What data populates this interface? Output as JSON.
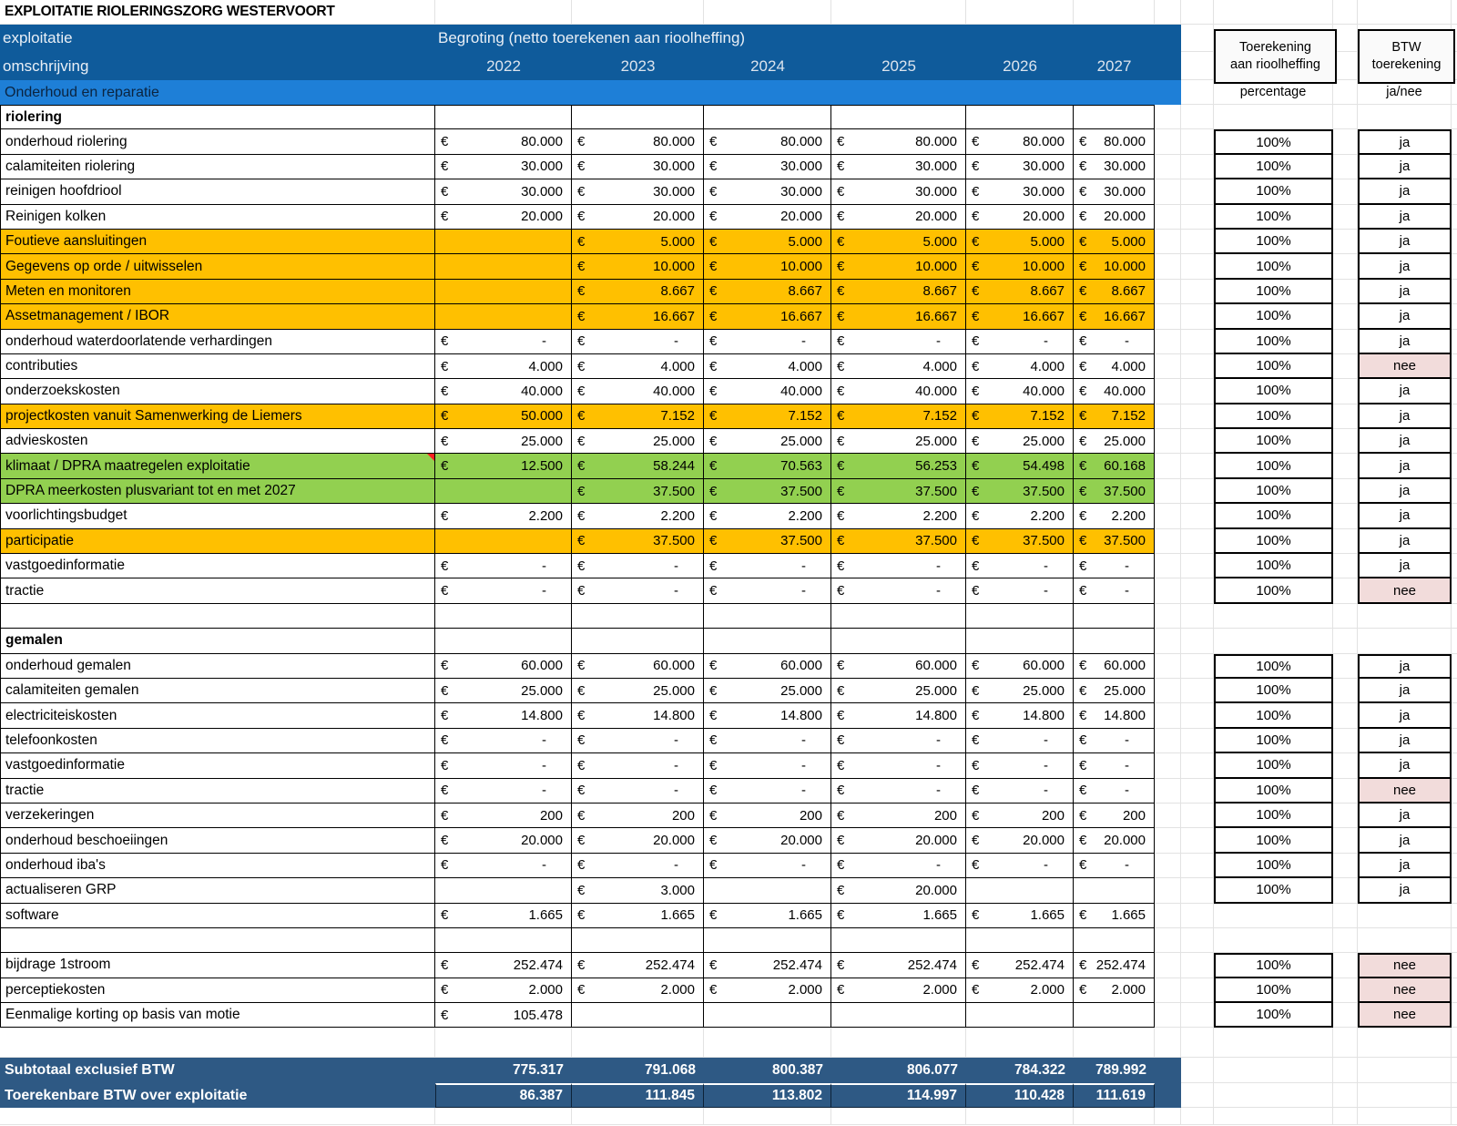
{
  "title": "EXPLOITATIE RIOLERINGSZORG WESTERVOORT",
  "header": {
    "col1_line1": "exploitatie",
    "col1_line2": "omschrijving",
    "budget_title": "Begroting (netto toerekenen aan rioolheffing)",
    "years": [
      "2022",
      "2023",
      "2024",
      "2025",
      "2026",
      "2027"
    ],
    "subheader": "Onderhoud en reparatie",
    "toerekening_line1": "Toerekening",
    "toerekening_line2": "aan rioolheffing",
    "toerekening_sub": "percentage",
    "btw_line1": "BTW",
    "btw_line2": "toerekening",
    "btw_sub": "ja/nee",
    "currency_symbol": "€"
  },
  "colors": {
    "header_blue": "#0F5B9B",
    "subheader_blue": "#1E7FD7",
    "totals_navy": "#2E5984",
    "highlight_orange": "#FFC000",
    "highlight_green": "#92D050",
    "nee_pink": "#F2DCDB",
    "comment_red": "#FF2020"
  },
  "rows": [
    {
      "t": "g",
      "h": 27
    },
    {
      "t": "h1"
    },
    {
      "t": "h2"
    },
    {
      "t": "oer"
    },
    {
      "t": "s",
      "l": "riolering",
      "ft": 1
    },
    {
      "t": "d",
      "l": "onderhoud riolering",
      "v": [
        "80.000",
        "80.000",
        "80.000",
        "80.000",
        "80.000",
        "80.000"
      ],
      "p": "100%",
      "b": "ja"
    },
    {
      "t": "d",
      "l": "calamiteiten riolering",
      "v": [
        "30.000",
        "30.000",
        "30.000",
        "30.000",
        "30.000",
        "30.000"
      ],
      "p": "100%",
      "b": "ja"
    },
    {
      "t": "d",
      "l": "reinigen hoofdriool",
      "v": [
        "30.000",
        "30.000",
        "30.000",
        "30.000",
        "30.000",
        "30.000"
      ],
      "p": "100%",
      "b": "ja"
    },
    {
      "t": "d",
      "l": "Reinigen kolken",
      "v": [
        "20.000",
        "20.000",
        "20.000",
        "20.000",
        "20.000",
        "20.000"
      ],
      "p": "100%",
      "b": "ja"
    },
    {
      "t": "d",
      "l": "Foutieve aansluitingen",
      "bg": "orange",
      "v": [
        null,
        "5.000",
        "5.000",
        "5.000",
        "5.000",
        "5.000"
      ],
      "p": "100%",
      "b": "ja"
    },
    {
      "t": "d",
      "l": "Gegevens op orde / uitwisselen",
      "bg": "orange",
      "v": [
        null,
        "10.000",
        "10.000",
        "10.000",
        "10.000",
        "10.000"
      ],
      "p": "100%",
      "b": "ja"
    },
    {
      "t": "d",
      "l": "Meten en monitoren",
      "bg": "orange",
      "v": [
        null,
        "8.667",
        "8.667",
        "8.667",
        "8.667",
        "8.667"
      ],
      "p": "100%",
      "b": "ja"
    },
    {
      "t": "d",
      "l": "Assetmanagement / IBOR",
      "bg": "orange",
      "v": [
        null,
        "16.667",
        "16.667",
        "16.667",
        "16.667",
        "16.667"
      ],
      "p": "100%",
      "b": "ja"
    },
    {
      "t": "d",
      "l": "onderhoud waterdoorlatende verhardingen",
      "v": [
        "-",
        "-",
        "-",
        "-",
        "-",
        "-"
      ],
      "p": "100%",
      "b": "ja"
    },
    {
      "t": "d",
      "l": "contributies",
      "v": [
        "4.000",
        "4.000",
        "4.000",
        "4.000",
        "4.000",
        "4.000"
      ],
      "p": "100%",
      "b": "nee"
    },
    {
      "t": "d",
      "l": "onderzoekskosten",
      "v": [
        "40.000",
        "40.000",
        "40.000",
        "40.000",
        "40.000",
        "40.000"
      ],
      "p": "100%",
      "b": "ja"
    },
    {
      "t": "d",
      "l": "projectkosten vanuit Samenwerking de Liemers",
      "bg": "orange",
      "v": [
        "50.000",
        "7.152",
        "7.152",
        "7.152",
        "7.152",
        "7.152"
      ],
      "p": "100%",
      "b": "ja"
    },
    {
      "t": "d",
      "l": "advieskosten",
      "v": [
        "25.000",
        "25.000",
        "25.000",
        "25.000",
        "25.000",
        "25.000"
      ],
      "p": "100%",
      "b": "ja"
    },
    {
      "t": "d",
      "l": "klimaat / DPRA maatregelen exploitatie",
      "bg": "green",
      "cm": 1,
      "v": [
        "12.500",
        "58.244",
        "70.563",
        "56.253",
        "54.498",
        "60.168"
      ],
      "p": "100%",
      "b": "ja"
    },
    {
      "t": "d",
      "l": "DPRA meerkosten plusvariant tot en met 2027",
      "bg": "green",
      "v": [
        null,
        "37.500",
        "37.500",
        "37.500",
        "37.500",
        "37.500"
      ],
      "p": "100%",
      "b": "ja"
    },
    {
      "t": "d",
      "l": "voorlichtingsbudget",
      "v": [
        "2.200",
        "2.200",
        "2.200",
        "2.200",
        "2.200",
        "2.200"
      ],
      "p": "100%",
      "b": "ja"
    },
    {
      "t": "d",
      "l": "participatie",
      "bg": "orange",
      "v": [
        null,
        "37.500",
        "37.500",
        "37.500",
        "37.500",
        "37.500"
      ],
      "p": "100%",
      "b": "ja"
    },
    {
      "t": "d",
      "l": "vastgoedinformatie",
      "v": [
        "-",
        "-",
        "-",
        "-",
        "-",
        "-"
      ],
      "p": "100%",
      "b": "ja"
    },
    {
      "t": "d",
      "l": "tractie",
      "v": [
        "-",
        "-",
        "-",
        "-",
        "-",
        "-"
      ],
      "p": "100%",
      "b": "nee"
    },
    {
      "t": "b"
    },
    {
      "t": "s",
      "l": "gemalen"
    },
    {
      "t": "d",
      "l": "onderhoud gemalen",
      "v": [
        "60.000",
        "60.000",
        "60.000",
        "60.000",
        "60.000",
        "60.000"
      ],
      "p": "100%",
      "b": "ja"
    },
    {
      "t": "d",
      "l": "calamiteiten gemalen",
      "v": [
        "25.000",
        "25.000",
        "25.000",
        "25.000",
        "25.000",
        "25.000"
      ],
      "p": "100%",
      "b": "ja"
    },
    {
      "t": "d",
      "l": "electriciteiskosten",
      "v": [
        "14.800",
        "14.800",
        "14.800",
        "14.800",
        "14.800",
        "14.800"
      ],
      "p": "100%",
      "b": "ja"
    },
    {
      "t": "d",
      "l": "telefoonkosten",
      "v": [
        "-",
        "-",
        "-",
        "-",
        "-",
        "-"
      ],
      "p": "100%",
      "b": "ja"
    },
    {
      "t": "d",
      "l": "vastgoedinformatie",
      "v": [
        "-",
        "-",
        "-",
        "-",
        "-",
        "-"
      ],
      "p": "100%",
      "b": "ja"
    },
    {
      "t": "d",
      "l": "tractie",
      "v": [
        "-",
        "-",
        "-",
        "-",
        "-",
        "-"
      ],
      "p": "100%",
      "b": "nee"
    },
    {
      "t": "d",
      "l": "verzekeringen",
      "v": [
        "200",
        "200",
        "200",
        "200",
        "200",
        "200"
      ],
      "p": "100%",
      "b": "ja"
    },
    {
      "t": "d",
      "l": "onderhoud beschoeiingen",
      "v": [
        "20.000",
        "20.000",
        "20.000",
        "20.000",
        "20.000",
        "20.000"
      ],
      "p": "100%",
      "b": "ja"
    },
    {
      "t": "d",
      "l": "onderhoud iba's",
      "v": [
        "-",
        "-",
        "-",
        "-",
        "-",
        "-"
      ],
      "p": "100%",
      "b": "ja"
    },
    {
      "t": "d",
      "l": "actualiseren GRP",
      "v": [
        null,
        "3.000",
        null,
        "20.000",
        null,
        null
      ],
      "p": "100%",
      "b": "ja"
    },
    {
      "t": "d",
      "l": "software",
      "v": [
        "1.665",
        "1.665",
        "1.665",
        "1.665",
        "1.665",
        "1.665"
      ]
    },
    {
      "t": "b"
    },
    {
      "t": "d",
      "l": "bijdrage 1stroom",
      "v": [
        "252.474",
        "252.474",
        "252.474",
        "252.474",
        "252.474",
        "252.474"
      ],
      "p": "100%",
      "b": "nee"
    },
    {
      "t": "d",
      "l": "perceptiekosten",
      "v": [
        "2.000",
        "2.000",
        "2.000",
        "2.000",
        "2.000",
        "2.000"
      ],
      "p": "100%",
      "b": "nee"
    },
    {
      "t": "d",
      "l": "Eenmalige korting op basis van motie",
      "v": [
        "105.478",
        null,
        null,
        null,
        null,
        null
      ],
      "p": "100%",
      "b": "nee"
    },
    {
      "t": "g",
      "h": 33
    },
    {
      "t": "T",
      "l": "Subtotaal exclusief BTW",
      "v": [
        "775.317",
        "791.068",
        "800.387",
        "806.077",
        "784.322",
        "789.992"
      ]
    },
    {
      "t": "T",
      "l": "Toerekenbare BTW over exploitatie",
      "v": [
        "86.387",
        "111.845",
        "113.802",
        "114.997",
        "110.428",
        "111.619"
      ],
      "sep": 1
    },
    {
      "t": "g",
      "h": 19
    }
  ]
}
